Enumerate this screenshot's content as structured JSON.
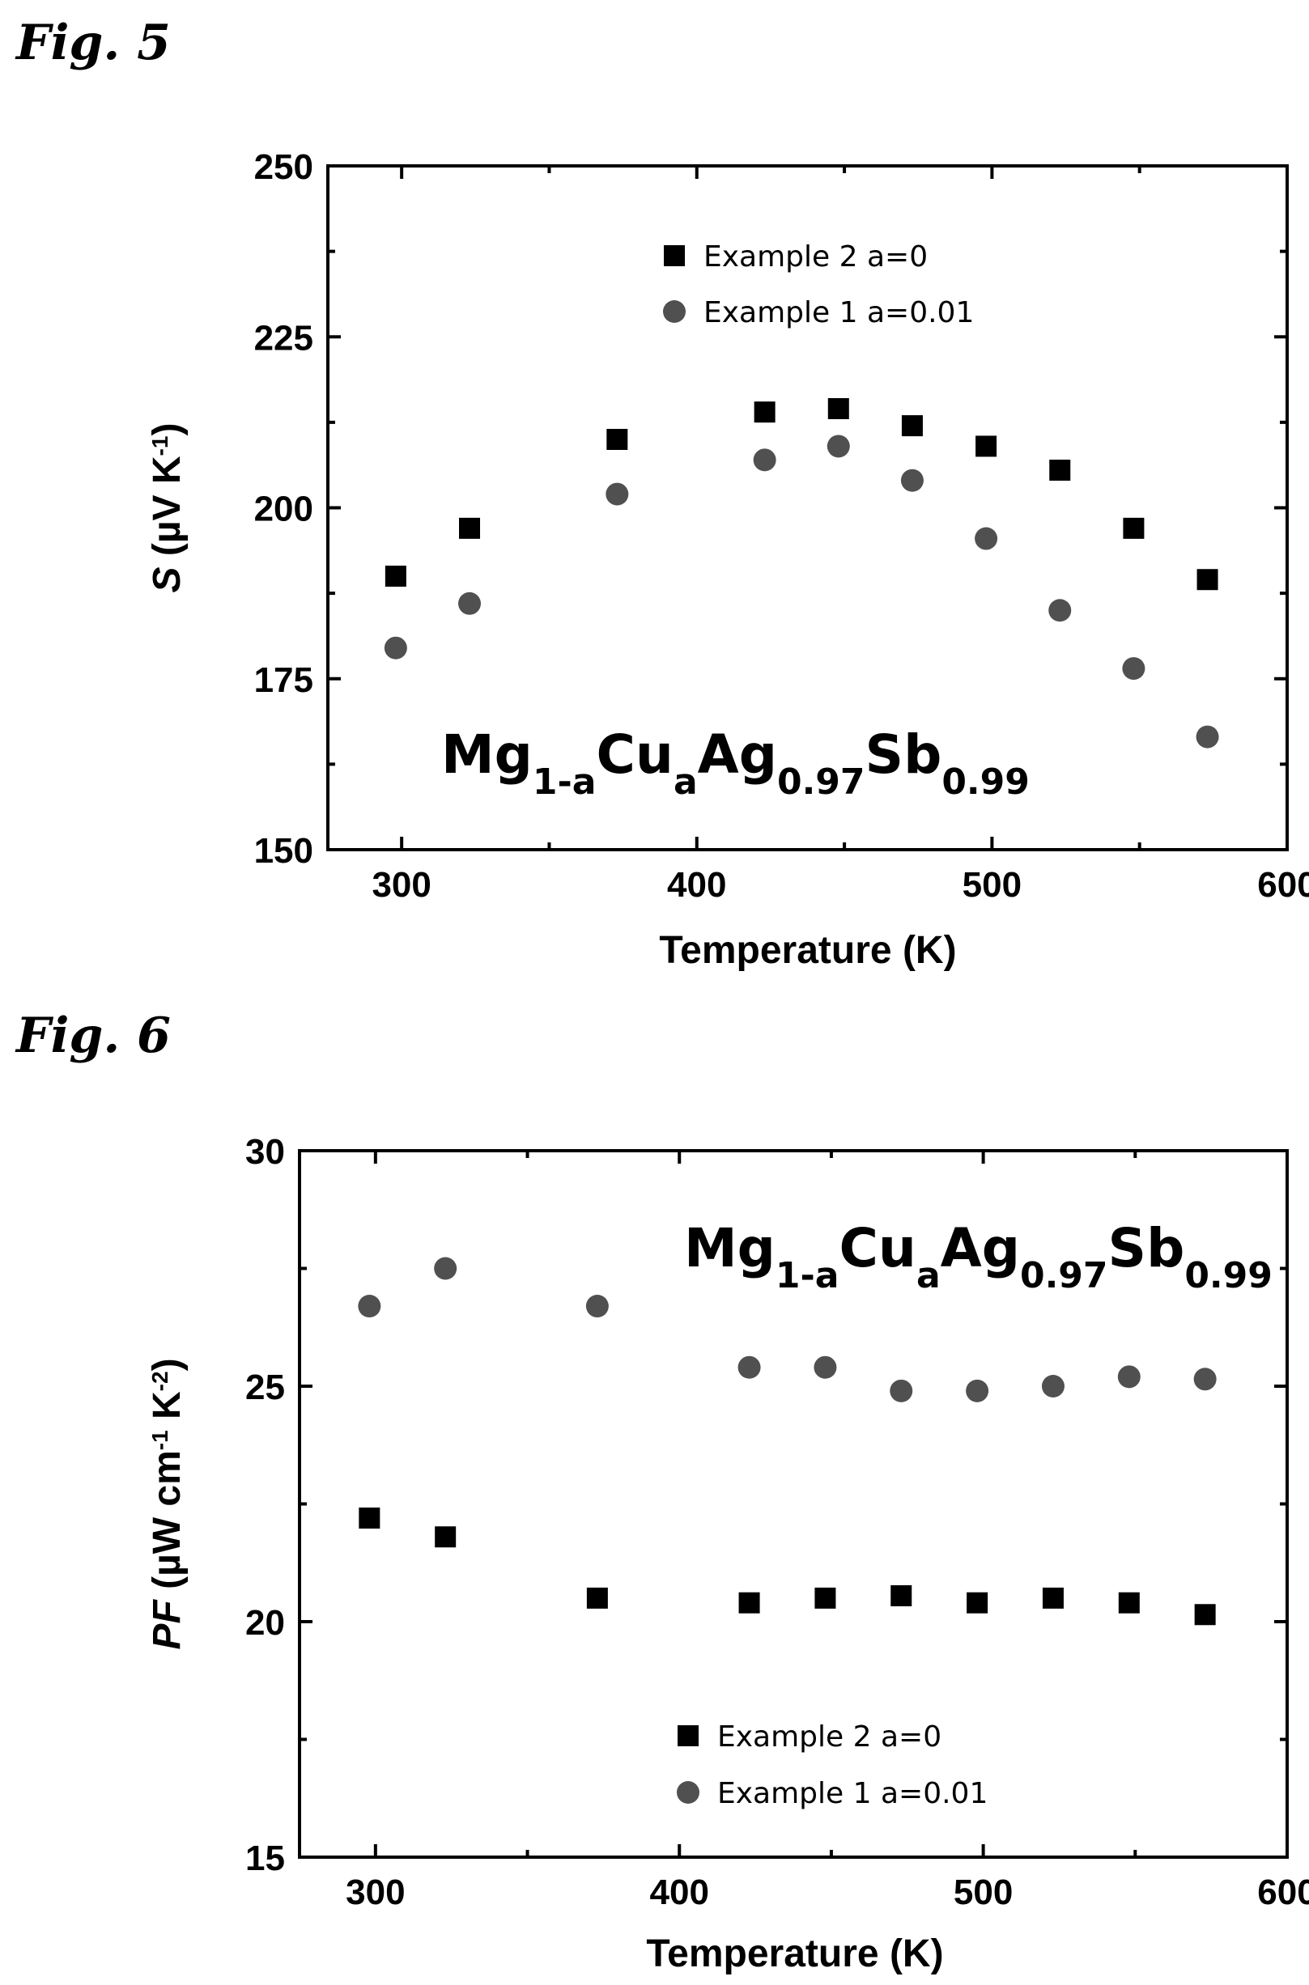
{
  "figures": [
    {
      "label": "Fig. 5"
    },
    {
      "label": "Fig. 6"
    }
  ],
  "colors": {
    "square": "#000000",
    "circle": "#505050"
  },
  "chart_data": [
    {
      "type": "scatter",
      "xlabel": "Temperature (K)",
      "ylabel": {
        "italic": "S",
        "main": "(µV K",
        "sup": "-1",
        "end": ")"
      },
      "xlim": [
        275,
        600
      ],
      "ylim": [
        150,
        250
      ],
      "xticks": [
        300,
        400,
        500,
        600
      ],
      "yticks": [
        150,
        175,
        200,
        225,
        250
      ],
      "formula": {
        "a": "Mg",
        "b": "1-a",
        "c": "Cu",
        "d": "a",
        "e": "Ag",
        "f": "0.97",
        "g": "Sb",
        "h": "0.99"
      },
      "legend_position": "top-center",
      "series": [
        {
          "name": "Example 2  a=0",
          "marker": "square",
          "x": [
            298,
            323,
            373,
            423,
            448,
            473,
            498,
            523,
            548,
            573
          ],
          "y": [
            190,
            197,
            210,
            214,
            214.5,
            212,
            209,
            205.5,
            197,
            189.5
          ]
        },
        {
          "name": "Example 1  a=0.01",
          "marker": "circle",
          "x": [
            298,
            323,
            373,
            423,
            448,
            473,
            498,
            523,
            548,
            573
          ],
          "y": [
            179.5,
            186,
            202,
            207,
            209,
            204,
            195.5,
            185,
            176.5,
            166.5
          ]
        }
      ]
    },
    {
      "type": "scatter",
      "xlabel": "Temperature (K)",
      "ylabel": {
        "italic": "PF",
        "main": "(µW cm",
        "sup": "-1",
        "mid": " K",
        "sup2": "-2",
        "end": ")"
      },
      "xlim": [
        275,
        600
      ],
      "ylim": [
        15,
        30
      ],
      "xticks": [
        300,
        400,
        500,
        600
      ],
      "yticks": [
        15,
        20,
        25,
        30
      ],
      "formula": {
        "a": "Mg",
        "b": "1-a",
        "c": "Cu",
        "d": "a",
        "e": "Ag",
        "f": "0.97",
        "g": "Sb",
        "h": "0.99"
      },
      "legend_position": "bottom-center",
      "series": [
        {
          "name": "Example 2  a=0",
          "marker": "square",
          "x": [
            298,
            323,
            373,
            423,
            448,
            473,
            498,
            523,
            548,
            573
          ],
          "y": [
            22.2,
            21.8,
            20.5,
            20.4,
            20.5,
            20.55,
            20.4,
            20.5,
            20.4,
            20.15
          ]
        },
        {
          "name": "Example 1  a=0.01",
          "marker": "circle",
          "x": [
            298,
            323,
            373,
            423,
            448,
            473,
            498,
            523,
            548,
            573
          ],
          "y": [
            26.7,
            27.5,
            26.7,
            25.4,
            25.4,
            24.9,
            24.9,
            25.0,
            25.2,
            25.15
          ]
        }
      ]
    }
  ]
}
